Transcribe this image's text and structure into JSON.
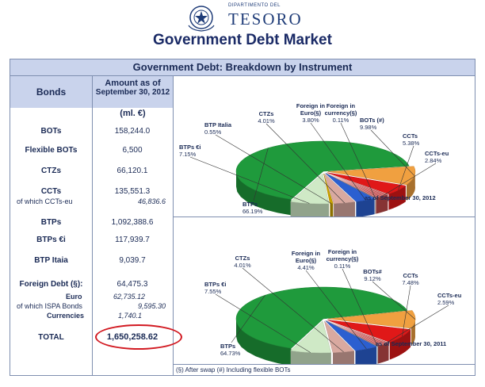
{
  "header": {
    "department": "DIPARTIMENTO DEL",
    "brand": "TESORO",
    "title": "Government Debt Market"
  },
  "panel": {
    "title": "Government Debt: Breakdown by Instrument",
    "col_bonds": "Bonds",
    "col_amount_line1": "Amount  as of",
    "col_amount_line2": "September 30, 2012",
    "unit": "(ml. €)",
    "footnote": "(§) After swap (#) Including flexible BOTs"
  },
  "table": {
    "bots": {
      "label": "BOTs",
      "value": "158,244.0"
    },
    "flex_bots": {
      "label": "Flexible BOTs",
      "value": "6,500"
    },
    "ctzs": {
      "label": "CTZs",
      "value": "66,120.1"
    },
    "ccts": {
      "label": "CCTs",
      "value": "135,551.3",
      "sub_label": "of which  CCTs-eu",
      "sub_value": "46,836.6"
    },
    "btps": {
      "label": "BTPs",
      "value": "1,092,388.6"
    },
    "btps_ei": {
      "label": "BTPs €i",
      "value": "117,939.7"
    },
    "btp_italia": {
      "label": "BTP Itaia",
      "value": "9,039.7"
    },
    "foreign": {
      "label": "Foreign Debt (§):",
      "value": "64,475.3",
      "euro_label": "Euro",
      "euro_value": "62,735.12",
      "ispa_label": "of which  ISPA Bonds",
      "ispa_value": "9,595.30",
      "curr_label": "Currencies",
      "curr_value": "1,740.1"
    },
    "total": {
      "label": "TOTAL",
      "value": "1,650,258.62"
    }
  },
  "colors": {
    "btps": "#1f9a3c",
    "bots": "#f0a040",
    "ccts": "#e01818",
    "cctseu": "#c04a4a",
    "btpsei": "#cfe9c6",
    "ctzs": "#d9a9a0",
    "foreign_euro": "#2b5fd0",
    "foreign_curr": "#9a9a9a",
    "btp_italia": "#c8a000",
    "highlight": "#d21a22"
  },
  "chart_data": [
    {
      "type": "pie",
      "title": "Government Debt: Breakdown by Instrument",
      "as_of": "as of  September 30, 2012",
      "slices": [
        {
          "key": "btps",
          "label": "BTPs",
          "pct": "66.19%",
          "value": 66.19
        },
        {
          "key": "bots",
          "label": "BOTs (#)",
          "pct": "9.98%",
          "value": 9.98
        },
        {
          "key": "ccts",
          "label": "CCTs",
          "pct": "5.38%",
          "value": 5.38
        },
        {
          "key": "cctseu",
          "label": "CCTs-eu",
          "pct": "2.84%",
          "value": 2.84
        },
        {
          "key": "foreign_curr",
          "label": "Foreign in currency(§)",
          "pct": "0.11%",
          "value": 0.11
        },
        {
          "key": "foreign_euro",
          "label": "Foreign in Euro(§)",
          "pct": "3.80%",
          "value": 3.8
        },
        {
          "key": "ctzs",
          "label": "CTZs",
          "pct": "4.01%",
          "value": 4.01
        },
        {
          "key": "btp_italia",
          "label": "BTP Italia",
          "pct": "0.55%",
          "value": 0.55
        },
        {
          "key": "btpsei",
          "label": "BTPs €i",
          "pct": "7.15%",
          "value": 7.15
        }
      ]
    },
    {
      "type": "pie",
      "title": "Government Debt: Breakdown by Instrument",
      "as_of": "as of  September 30, 2011",
      "slices": [
        {
          "key": "btps",
          "label": "BTPs",
          "pct": "64.73%",
          "value": 64.73
        },
        {
          "key": "bots",
          "label": "BOTs#",
          "pct": "9.12%",
          "value": 9.12
        },
        {
          "key": "ccts",
          "label": "CCTs",
          "pct": "7.48%",
          "value": 7.48
        },
        {
          "key": "cctseu",
          "label": "CCTs-eu",
          "pct": "2.59%",
          "value": 2.59
        },
        {
          "key": "foreign_curr",
          "label": "Foreign in currency(§)",
          "pct": "0.11%",
          "value": 0.11
        },
        {
          "key": "foreign_euro",
          "label": "Foreign in Euro(§)",
          "pct": "4.41%",
          "value": 4.41
        },
        {
          "key": "ctzs",
          "label": "CTZs",
          "pct": "4.01%",
          "value": 4.01
        },
        {
          "key": "btpsei",
          "label": "BTPs €i",
          "pct": "7.55%",
          "value": 7.55
        }
      ]
    }
  ]
}
